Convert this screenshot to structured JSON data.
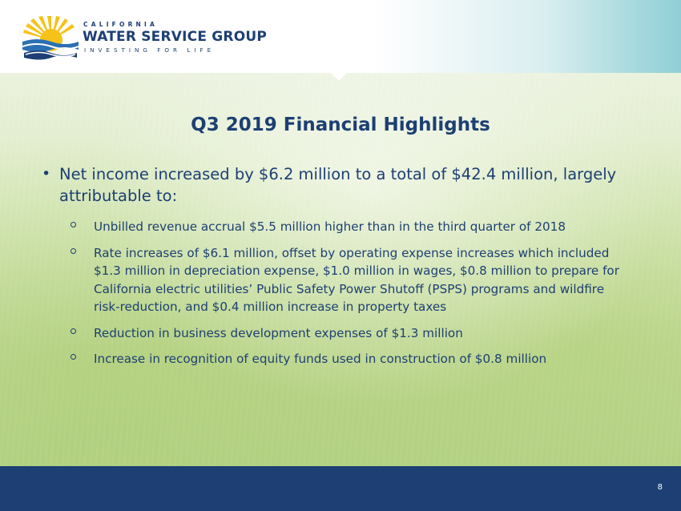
{
  "brand": {
    "top": "CALIFORNIA",
    "main": "WATER SERVICE GROUP",
    "sub": "INVESTING FOR LIFE",
    "logo_icon": "sun-water-logo-icon"
  },
  "slide": {
    "title": "Q3 2019 Financial Highlights",
    "main_bullet": "Net income increased by $6.2 million to a total of $42.4 million, largely attributable to:",
    "sub_bullets": [
      "Unbilled revenue accrual $5.5 million higher than in the third quarter of 2018",
      "Rate increases of $6.1 million, offset by operating expense increases which included $1.3 million in depreciation expense, $1.0 million in wages, $0.8 million to prepare for California electric utilities’ Public Safety Power Shutoff (PSPS) programs and wildfire risk-reduction, and $0.4 million increase in property taxes",
      "Reduction in business development expenses of $1.3 million",
      "Increase in recognition of equity funds used in construction of $0.8 million"
    ],
    "page_number": "8"
  },
  "colors": {
    "navy": "#1d3f73",
    "sun": "#f6c21a",
    "water_blue": "#2a6fb3"
  }
}
